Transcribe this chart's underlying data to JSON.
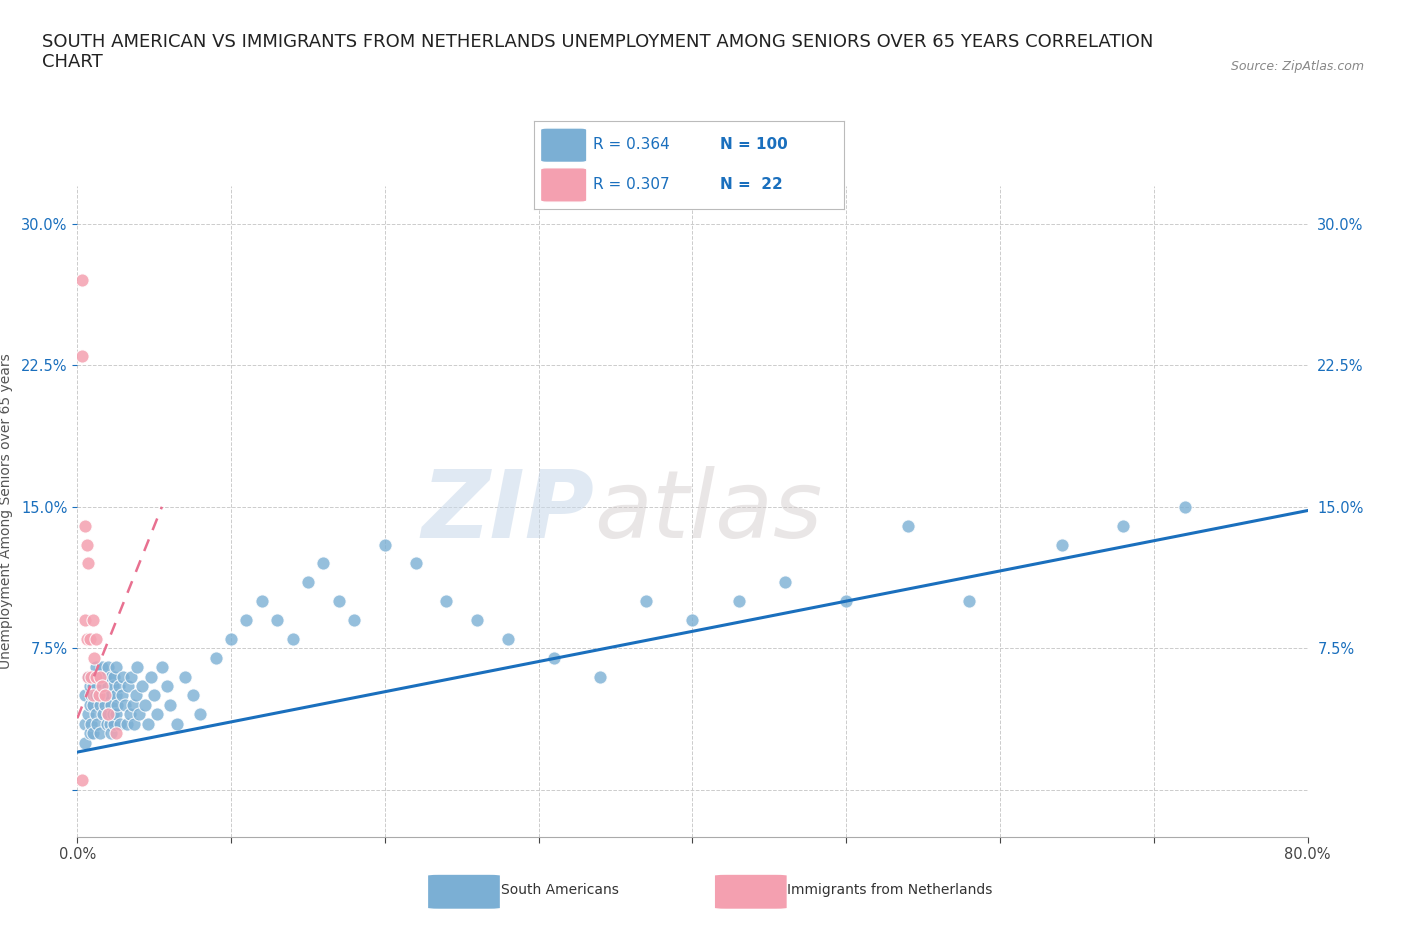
{
  "title": "SOUTH AMERICAN VS IMMIGRANTS FROM NETHERLANDS UNEMPLOYMENT AMONG SENIORS OVER 65 YEARS CORRELATION\nCHART",
  "source": "Source: ZipAtlas.com",
  "ylabel": "Unemployment Among Seniors over 65 years",
  "xlim": [
    0.0,
    0.8
  ],
  "ylim": [
    -0.025,
    0.32
  ],
  "xticks": [
    0.0,
    0.1,
    0.2,
    0.3,
    0.4,
    0.5,
    0.6,
    0.7,
    0.8
  ],
  "yticks": [
    0.0,
    0.075,
    0.15,
    0.225,
    0.3
  ],
  "R_blue": 0.364,
  "N_blue": 100,
  "R_pink": 0.307,
  "N_pink": 22,
  "blue_color": "#7bafd4",
  "pink_color": "#f4a0b0",
  "line_blue": "#1a6fbd",
  "line_pink": "#e87090",
  "watermark_zip": "ZIP",
  "watermark_atlas": "atlas",
  "blue_scatter_x": [
    0.005,
    0.005,
    0.005,
    0.007,
    0.007,
    0.008,
    0.008,
    0.008,
    0.009,
    0.009,
    0.01,
    0.01,
    0.01,
    0.01,
    0.012,
    0.012,
    0.012,
    0.013,
    0.013,
    0.015,
    0.015,
    0.015,
    0.016,
    0.016,
    0.017,
    0.017,
    0.018,
    0.018,
    0.019,
    0.019,
    0.02,
    0.02,
    0.02,
    0.021,
    0.021,
    0.022,
    0.022,
    0.022,
    0.023,
    0.023,
    0.024,
    0.024,
    0.025,
    0.025,
    0.025,
    0.026,
    0.027,
    0.028,
    0.029,
    0.03,
    0.031,
    0.032,
    0.033,
    0.034,
    0.035,
    0.036,
    0.037,
    0.038,
    0.039,
    0.04,
    0.042,
    0.044,
    0.046,
    0.048,
    0.05,
    0.052,
    0.055,
    0.058,
    0.06,
    0.065,
    0.07,
    0.075,
    0.08,
    0.09,
    0.1,
    0.11,
    0.12,
    0.13,
    0.14,
    0.15,
    0.16,
    0.17,
    0.18,
    0.2,
    0.22,
    0.24,
    0.26,
    0.28,
    0.31,
    0.34,
    0.37,
    0.4,
    0.43,
    0.46,
    0.5,
    0.54,
    0.58,
    0.64,
    0.68,
    0.72
  ],
  "blue_scatter_y": [
    0.05,
    0.035,
    0.025,
    0.06,
    0.04,
    0.045,
    0.055,
    0.03,
    0.05,
    0.035,
    0.06,
    0.045,
    0.03,
    0.055,
    0.04,
    0.065,
    0.05,
    0.035,
    0.055,
    0.06,
    0.045,
    0.03,
    0.05,
    0.065,
    0.04,
    0.055,
    0.045,
    0.06,
    0.035,
    0.05,
    0.055,
    0.04,
    0.065,
    0.05,
    0.035,
    0.06,
    0.045,
    0.03,
    0.055,
    0.04,
    0.06,
    0.035,
    0.05,
    0.065,
    0.04,
    0.045,
    0.055,
    0.035,
    0.05,
    0.06,
    0.045,
    0.035,
    0.055,
    0.04,
    0.06,
    0.045,
    0.035,
    0.05,
    0.065,
    0.04,
    0.055,
    0.045,
    0.035,
    0.06,
    0.05,
    0.04,
    0.065,
    0.055,
    0.045,
    0.035,
    0.06,
    0.05,
    0.04,
    0.07,
    0.08,
    0.09,
    0.1,
    0.09,
    0.08,
    0.11,
    0.12,
    0.1,
    0.09,
    0.13,
    0.12,
    0.1,
    0.09,
    0.08,
    0.07,
    0.06,
    0.1,
    0.09,
    0.1,
    0.11,
    0.1,
    0.14,
    0.1,
    0.13,
    0.14,
    0.15
  ],
  "pink_scatter_x": [
    0.003,
    0.003,
    0.005,
    0.005,
    0.006,
    0.006,
    0.007,
    0.007,
    0.008,
    0.009,
    0.01,
    0.01,
    0.011,
    0.012,
    0.012,
    0.014,
    0.015,
    0.016,
    0.018,
    0.02,
    0.025,
    0.003
  ],
  "pink_scatter_y": [
    0.27,
    0.23,
    0.14,
    0.09,
    0.13,
    0.08,
    0.12,
    0.06,
    0.08,
    0.06,
    0.09,
    0.05,
    0.07,
    0.08,
    0.06,
    0.05,
    0.06,
    0.055,
    0.05,
    0.04,
    0.03,
    0.005
  ],
  "blue_line_x": [
    0.0,
    0.8
  ],
  "blue_line_y": [
    0.02,
    0.148
  ],
  "pink_line_x": [
    0.0,
    0.055
  ],
  "pink_line_y": [
    0.038,
    0.15
  ],
  "grid_color": "#cccccc",
  "bg_color": "#ffffff",
  "title_fontsize": 13,
  "axis_label_fontsize": 10,
  "tick_fontsize": 10.5
}
